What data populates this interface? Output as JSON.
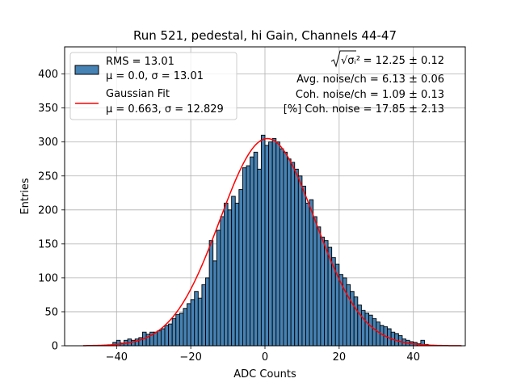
{
  "chart_data": {
    "type": "bar",
    "title": "Run 521, pedestal, hi Gain, Channels 44-47",
    "xlabel": "ADC Counts",
    "ylabel": "Entries",
    "xlim": [
      -54,
      54
    ],
    "ylim": [
      0,
      440
    ],
    "x_ticks": [
      -40,
      -20,
      0,
      20,
      40
    ],
    "y_ticks": [
      0,
      50,
      100,
      150,
      200,
      250,
      300,
      350,
      400
    ],
    "x_tick_labels": [
      "−40",
      "−20",
      "0",
      "20",
      "40"
    ],
    "y_tick_labels": [
      "0",
      "50",
      "100",
      "150",
      "200",
      "250",
      "300",
      "350",
      "400"
    ],
    "grid": true,
    "legend_position": "top-left",
    "colors": {
      "bars": "#4682b4",
      "bar_edge": "#000000",
      "fit": "#ff0000",
      "grid": "#b0b0b0"
    },
    "series": [
      {
        "name": "RMS = 13.01",
        "label_line2": "μ = 0.0, σ = 13.01",
        "type": "histogram",
        "bin_width": 1,
        "bins": [
          [
            -41,
            5
          ],
          [
            -40,
            8
          ],
          [
            -39,
            4
          ],
          [
            -38,
            8
          ],
          [
            -37,
            10
          ],
          [
            -36,
            8
          ],
          [
            -35,
            10
          ],
          [
            -34,
            12
          ],
          [
            -33,
            20
          ],
          [
            -32,
            17
          ],
          [
            -31,
            20
          ],
          [
            -30,
            20
          ],
          [
            -29,
            22
          ],
          [
            -28,
            25
          ],
          [
            -27,
            30
          ],
          [
            -26,
            32
          ],
          [
            -25,
            40
          ],
          [
            -24,
            46
          ],
          [
            -23,
            48
          ],
          [
            -22,
            55
          ],
          [
            -21,
            62
          ],
          [
            -20,
            68
          ],
          [
            -19,
            80
          ],
          [
            -18,
            70
          ],
          [
            -17,
            90
          ],
          [
            -16,
            100
          ],
          [
            -15,
            155
          ],
          [
            -14,
            125
          ],
          [
            -13,
            170
          ],
          [
            -12,
            190
          ],
          [
            -11,
            210
          ],
          [
            -10,
            200
          ],
          [
            -9,
            220
          ],
          [
            -8,
            210
          ],
          [
            -7,
            230
          ],
          [
            -6,
            262
          ],
          [
            -5,
            265
          ],
          [
            -4,
            278
          ],
          [
            -3,
            285
          ],
          [
            -2,
            260
          ],
          [
            -1,
            310
          ],
          [
            0,
            295
          ],
          [
            1,
            300
          ],
          [
            2,
            305
          ],
          [
            3,
            300
          ],
          [
            4,
            290
          ],
          [
            5,
            285
          ],
          [
            6,
            275
          ],
          [
            7,
            270
          ],
          [
            8,
            260
          ],
          [
            9,
            250
          ],
          [
            10,
            235
          ],
          [
            11,
            210
          ],
          [
            12,
            215
          ],
          [
            13,
            190
          ],
          [
            14,
            175
          ],
          [
            15,
            160
          ],
          [
            16,
            155
          ],
          [
            17,
            145
          ],
          [
            18,
            130
          ],
          [
            19,
            120
          ],
          [
            20,
            105
          ],
          [
            21,
            100
          ],
          [
            22,
            90
          ],
          [
            23,
            80
          ],
          [
            24,
            72
          ],
          [
            25,
            60
          ],
          [
            26,
            52
          ],
          [
            27,
            48
          ],
          [
            28,
            45
          ],
          [
            29,
            40
          ],
          [
            30,
            35
          ],
          [
            31,
            30
          ],
          [
            32,
            28
          ],
          [
            33,
            25
          ],
          [
            34,
            20
          ],
          [
            35,
            18
          ],
          [
            36,
            15
          ],
          [
            37,
            10
          ],
          [
            38,
            8
          ],
          [
            39,
            6
          ],
          [
            40,
            5
          ],
          [
            41,
            3
          ],
          [
            42,
            8
          ],
          [
            43,
            2
          ]
        ]
      },
      {
        "name": "Gaussian Fit",
        "label_line2": "μ = 0.663, σ = 12.829",
        "type": "line",
        "mu": 0.663,
        "sigma": 12.829,
        "amplitude": 305,
        "x_range": [
          -49,
          53
        ]
      }
    ],
    "annotations": [
      {
        "label": "√σᵢ²",
        "value": "= 12.25 ± 0.12"
      },
      {
        "text": "Avg. noise/ch = 6.13 ± 0.06"
      },
      {
        "text": "Coh. noise/ch = 1.09 ± 0.13"
      },
      {
        "text": "[%] Coh. noise = 17.85 ± 2.13"
      }
    ]
  }
}
